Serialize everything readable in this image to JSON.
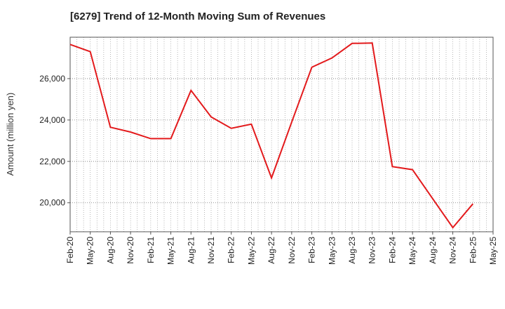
{
  "chart_data": {
    "type": "line",
    "title": "[6279]  Trend of 12-Month Moving Sum of Revenues",
    "xlabel": "",
    "ylabel": "Amount (million yen)",
    "ylim": [
      18600,
      28000
    ],
    "yticks": [
      20000,
      22000,
      24000,
      26000
    ],
    "ytick_labels": [
      "20,000",
      "22,000",
      "24,000",
      "26,000"
    ],
    "x_tick_labels": [
      "Feb-20",
      "May-20",
      "Aug-20",
      "Nov-20",
      "Feb-21",
      "May-21",
      "Aug-21",
      "Nov-21",
      "Feb-22",
      "May-22",
      "Aug-22",
      "Nov-22",
      "Feb-23",
      "May-23",
      "Aug-23",
      "Nov-23",
      "Feb-24",
      "May-24",
      "Aug-24",
      "Nov-24",
      "Feb-25",
      "May-25"
    ],
    "x_start": "Feb-20",
    "x_months_total": 63,
    "grid": true,
    "line_color": "#e31a1c",
    "series": [
      {
        "x": [
          "Feb-20",
          "May-20",
          "Aug-20",
          "Nov-20",
          "Feb-21",
          "May-21",
          "Aug-21",
          "Nov-21",
          "Feb-22",
          "May-22",
          "Aug-22",
          "Nov-22",
          "Feb-23",
          "May-23",
          "Aug-23",
          "Nov-23",
          "Feb-24",
          "May-24",
          "Aug-24",
          "Nov-24",
          "Feb-25"
        ],
        "values": [
          27650,
          27300,
          23650,
          23420,
          23100,
          23100,
          25430,
          24150,
          23600,
          23800,
          21200,
          23900,
          26550,
          27000,
          27700,
          27720,
          21750,
          21600,
          20200,
          18800,
          19950
        ]
      }
    ]
  }
}
